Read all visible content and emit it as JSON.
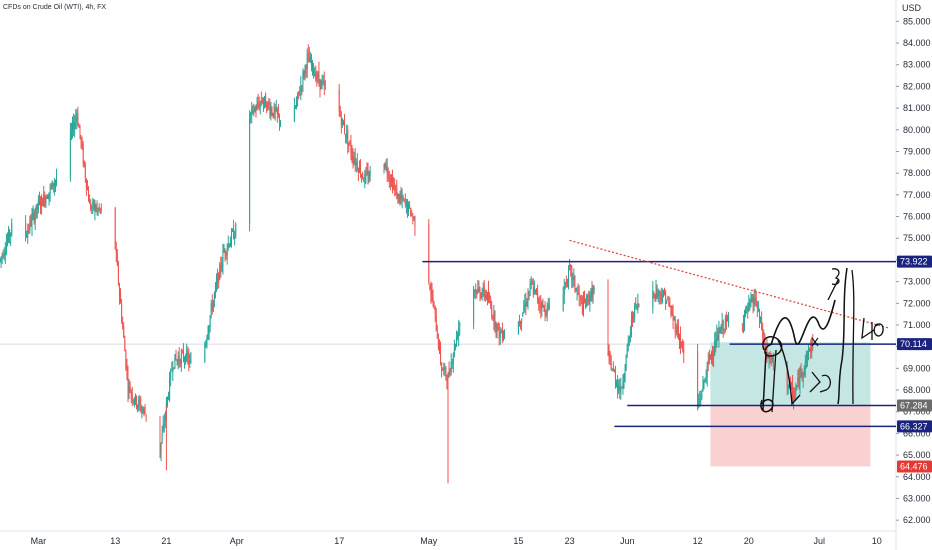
{
  "chart_data": {
    "type": "candlestick",
    "title": "CFDs on Crude Oil (WTI), 4h, FX",
    "unit": "USD",
    "ylim": [
      61.5,
      85.8
    ],
    "y_ticks": [
      85,
      84,
      83,
      82,
      81,
      80,
      79,
      78,
      77,
      76,
      75,
      74,
      73,
      72,
      71,
      70,
      69,
      68,
      67,
      66,
      65,
      64,
      63,
      62
    ],
    "y_tick_labels": [
      "85.000",
      "84.000",
      "83.000",
      "82.000",
      "81.000",
      "80.000",
      "79.000",
      "78.000",
      "77.000",
      "76.000",
      "75.000",
      "74.000",
      "73.000",
      "72.000",
      "71.000",
      "70.000",
      "69.000",
      "68.000",
      "67.000",
      "66.000",
      "65.000",
      "64.000",
      "63.000",
      "62.000"
    ],
    "x_range": [
      "2023-02-23",
      "2023-07-13"
    ],
    "x_ticks": [
      {
        "date": "2023-03-01",
        "label": "Mar"
      },
      {
        "date": "2023-03-13",
        "label": "13"
      },
      {
        "date": "2023-03-21",
        "label": "21"
      },
      {
        "date": "2023-04-01",
        "label": "Apr"
      },
      {
        "date": "2023-04-17",
        "label": "17"
      },
      {
        "date": "2023-05-01",
        "label": "May"
      },
      {
        "date": "2023-05-15",
        "label": "15"
      },
      {
        "date": "2023-05-23",
        "label": "23"
      },
      {
        "date": "2023-06-01",
        "label": "Jun"
      },
      {
        "date": "2023-06-12",
        "label": "12"
      },
      {
        "date": "2023-06-20",
        "label": "20"
      },
      {
        "date": "2023-07-01",
        "label": "Jul"
      },
      {
        "date": "2023-07-10",
        "label": "10"
      }
    ],
    "colors": {
      "up": "#26a69a",
      "down": "#ef5350",
      "level": "#1a237e",
      "trend": "#e53935",
      "profit": "#b2dfdb",
      "loss": "#f8c9c9",
      "current": "#ececec"
    },
    "series_path": [
      [
        "2023-02-23",
        74.0
      ],
      [
        "2023-02-25",
        75.6
      ],
      [
        "2023-02-27",
        75.2
      ],
      [
        "2023-03-01",
        76.5
      ],
      [
        "2023-03-03",
        77.3
      ],
      [
        "2023-03-05",
        78.5
      ],
      [
        "2023-03-07",
        80.8
      ],
      [
        "2023-03-09",
        76.5
      ],
      [
        "2023-03-11",
        76.2
      ],
      [
        "2023-03-13",
        74.6
      ],
      [
        "2023-03-15",
        68.2
      ],
      [
        "2023-03-16",
        67.6
      ],
      [
        "2023-03-18",
        66.8
      ],
      [
        "2023-03-20",
        65.2
      ],
      [
        "2023-03-22",
        69.3
      ],
      [
        "2023-03-24",
        69.6
      ],
      [
        "2023-03-26",
        68.5
      ],
      [
        "2023-03-28",
        71.7
      ],
      [
        "2023-03-30",
        74.4
      ],
      [
        "2023-04-01",
        75.5
      ],
      [
        "2023-04-03",
        80.6
      ],
      [
        "2023-04-05",
        81.4
      ],
      [
        "2023-04-08",
        80.4
      ],
      [
        "2023-04-10",
        80.8
      ],
      [
        "2023-04-12",
        83.3
      ],
      [
        "2023-04-14",
        82.2
      ],
      [
        "2023-04-17",
        80.8
      ],
      [
        "2023-04-19",
        78.9
      ],
      [
        "2023-04-21",
        77.7
      ],
      [
        "2023-04-24",
        78.6
      ],
      [
        "2023-04-26",
        77.0
      ],
      [
        "2023-04-28",
        76.3
      ],
      [
        "2023-04-30",
        75.0
      ],
      [
        "2023-05-02",
        71.3
      ],
      [
        "2023-05-03",
        69.0
      ],
      [
        "2023-05-04",
        68.6
      ],
      [
        "2023-05-06",
        71.4
      ],
      [
        "2023-05-08",
        72.7
      ],
      [
        "2023-05-10",
        72.4
      ],
      [
        "2023-05-12",
        70.6
      ],
      [
        "2023-05-15",
        71.1
      ],
      [
        "2023-05-17",
        72.8
      ],
      [
        "2023-05-19",
        71.7
      ],
      [
        "2023-05-21",
        71.8
      ],
      [
        "2023-05-23",
        73.5
      ],
      [
        "2023-05-25",
        71.8
      ],
      [
        "2023-05-27",
        72.7
      ],
      [
        "2023-05-29",
        69.5
      ],
      [
        "2023-05-31",
        67.9
      ],
      [
        "2023-06-02",
        71.7
      ],
      [
        "2023-06-04",
        72.2
      ],
      [
        "2023-06-05",
        72.6
      ],
      [
        "2023-06-07",
        72.3
      ],
      [
        "2023-06-09",
        70.6
      ],
      [
        "2023-06-12",
        67.2
      ],
      [
        "2023-06-14",
        69.6
      ],
      [
        "2023-06-16",
        71.0
      ],
      [
        "2023-06-19",
        71.3
      ],
      [
        "2023-06-21",
        72.2
      ],
      [
        "2023-06-23",
        69.4
      ],
      [
        "2023-06-25",
        69.0
      ],
      [
        "2023-06-27",
        67.7
      ],
      [
        "2023-06-29",
        69.5
      ],
      [
        "2023-06-30",
        70.2
      ]
    ],
    "wicks": [
      {
        "date": "2023-05-04",
        "low": 63.7
      },
      {
        "date": "2023-03-21",
        "low": 64.3
      }
    ],
    "levels": [
      {
        "name": "resistance",
        "value": 73.922,
        "label": "73.922",
        "label_color": "#1a237e"
      },
      {
        "name": "neckline",
        "value": 70.114,
        "label": "70.114",
        "label_color": "#1a237e"
      },
      {
        "name": "support",
        "value": 67.284,
        "label": "67.284",
        "label_color": "#6b6b6b"
      },
      {
        "name": "stop",
        "value": 66.327,
        "label": "66.327",
        "label_color": "#1a237e"
      },
      {
        "name": "target",
        "value": 64.476,
        "label": "64.476",
        "label_color": "#e53935"
      }
    ],
    "current_price": 70.114,
    "trendline": {
      "from": [
        "2023-05-23",
        74.9
      ],
      "to": [
        "2023-07-12",
        70.85
      ]
    },
    "position": {
      "start": "2023-06-14",
      "end": "2023-07-09",
      "entry": 70.114,
      "take_profit": 67.284,
      "stop": 64.476,
      "top": 70.2
    }
  }
}
